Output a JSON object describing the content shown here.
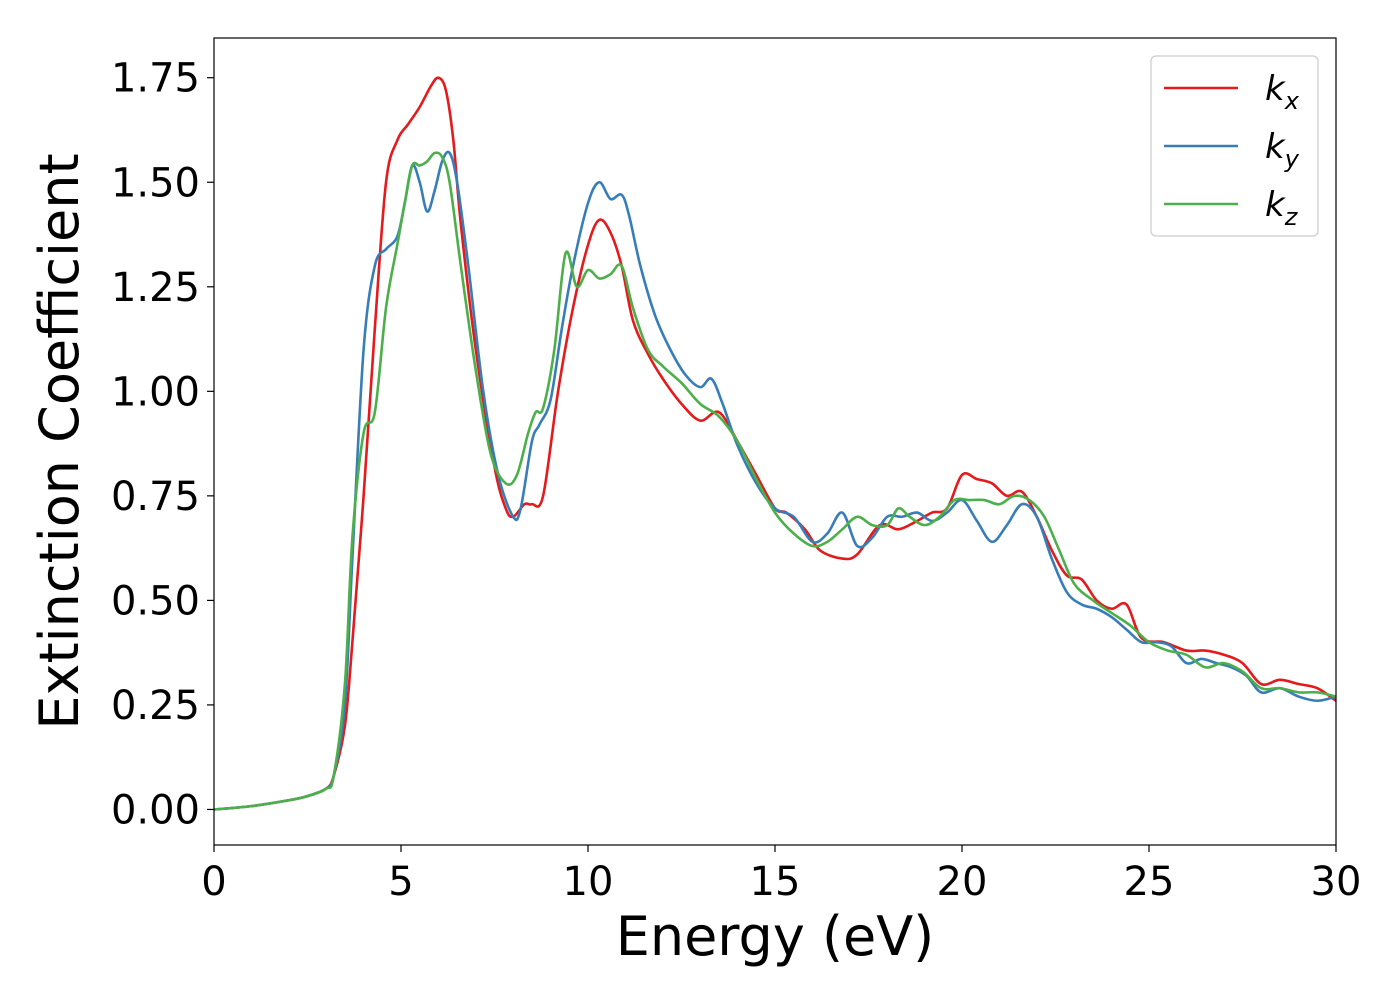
{
  "chart_data": {
    "type": "line",
    "title": "",
    "xlabel": "Energy (eV)",
    "ylabel": "Extinction Coefficient",
    "xlim": [
      0,
      30
    ],
    "ylim": [
      -0.085,
      1.845
    ],
    "xticks": [
      0,
      5,
      10,
      15,
      20,
      25,
      30
    ],
    "xtick_labels": [
      "0",
      "5",
      "10",
      "15",
      "20",
      "25",
      "30"
    ],
    "yticks": [
      0.0,
      0.25,
      0.5,
      0.75,
      1.0,
      1.25,
      1.5,
      1.75
    ],
    "ytick_labels": [
      "0.00",
      "0.25",
      "0.50",
      "0.75",
      "1.00",
      "1.25",
      "1.50",
      "1.75"
    ],
    "grid": false,
    "legend_position": "top-right",
    "series": [
      {
        "name": "kx",
        "base": "k",
        "sub": "x",
        "color": "#e41a1c",
        "x": [
          0,
          1,
          2,
          2.5,
          3,
          3.2,
          3.5,
          3.7,
          4,
          4.3,
          4.6,
          4.9,
          5.2,
          5.5,
          5.8,
          6.0,
          6.2,
          6.4,
          6.6,
          7.0,
          7.5,
          7.8,
          8.0,
          8.3,
          8.5,
          8.8,
          9.2,
          9.6,
          10.0,
          10.3,
          10.6,
          10.9,
          11.2,
          11.6,
          12.0,
          12.5,
          13.0,
          13.5,
          14.0,
          14.5,
          15.0,
          15.3,
          15.8,
          16.2,
          16.8,
          17.2,
          17.8,
          18.3,
          18.8,
          19.2,
          19.6,
          20.0,
          20.4,
          20.8,
          21.2,
          21.6,
          22.0,
          22.4,
          22.8,
          23.2,
          23.6,
          24.0,
          24.4,
          24.8,
          25.4,
          26.0,
          26.5,
          27.0,
          27.5,
          28.0,
          28.5,
          29.0,
          29.5,
          30.0
        ],
        "y": [
          0.0,
          0.008,
          0.022,
          0.032,
          0.05,
          0.08,
          0.2,
          0.4,
          0.75,
          1.15,
          1.5,
          1.6,
          1.64,
          1.68,
          1.73,
          1.75,
          1.72,
          1.6,
          1.4,
          1.1,
          0.82,
          0.72,
          0.7,
          0.73,
          0.73,
          0.75,
          1.0,
          1.2,
          1.35,
          1.41,
          1.38,
          1.3,
          1.17,
          1.09,
          1.03,
          0.97,
          0.93,
          0.95,
          0.88,
          0.8,
          0.72,
          0.71,
          0.67,
          0.62,
          0.6,
          0.61,
          0.68,
          0.67,
          0.69,
          0.71,
          0.72,
          0.8,
          0.79,
          0.78,
          0.75,
          0.76,
          0.7,
          0.62,
          0.56,
          0.55,
          0.5,
          0.48,
          0.49,
          0.41,
          0.4,
          0.38,
          0.38,
          0.37,
          0.35,
          0.3,
          0.31,
          0.3,
          0.29,
          0.26
        ]
      },
      {
        "name": "ky",
        "base": "k",
        "sub": "y",
        "color": "#377eb8",
        "x": [
          0,
          1,
          2,
          2.5,
          3,
          3.2,
          3.5,
          3.7,
          4,
          4.3,
          4.6,
          4.9,
          5.1,
          5.3,
          5.5,
          5.7,
          5.9,
          6.1,
          6.3,
          6.5,
          6.8,
          7.2,
          7.6,
          8.0,
          8.2,
          8.5,
          8.7,
          9.0,
          9.3,
          9.6,
          10.0,
          10.3,
          10.6,
          10.9,
          11.1,
          11.4,
          11.8,
          12.2,
          12.6,
          13.0,
          13.3,
          13.6,
          14.0,
          14.5,
          15.0,
          15.5,
          16.0,
          16.4,
          16.8,
          17.2,
          17.6,
          18.0,
          18.4,
          18.8,
          19.2,
          19.6,
          20.0,
          20.4,
          20.8,
          21.2,
          21.6,
          22.0,
          22.4,
          22.8,
          23.2,
          23.6,
          24.0,
          24.4,
          24.8,
          25.2,
          25.6,
          26.0,
          26.4,
          26.8,
          27.2,
          27.6,
          28.0,
          28.5,
          29.0,
          29.5,
          30.0
        ],
        "y": [
          0.0,
          0.008,
          0.022,
          0.032,
          0.05,
          0.08,
          0.25,
          0.6,
          1.1,
          1.3,
          1.34,
          1.37,
          1.45,
          1.54,
          1.5,
          1.43,
          1.48,
          1.55,
          1.57,
          1.5,
          1.3,
          1.0,
          0.8,
          0.7,
          0.72,
          0.88,
          0.92,
          0.98,
          1.15,
          1.3,
          1.45,
          1.5,
          1.46,
          1.47,
          1.42,
          1.3,
          1.18,
          1.1,
          1.04,
          1.01,
          1.03,
          0.97,
          0.87,
          0.78,
          0.72,
          0.7,
          0.64,
          0.66,
          0.71,
          0.63,
          0.65,
          0.7,
          0.7,
          0.71,
          0.69,
          0.71,
          0.74,
          0.69,
          0.64,
          0.68,
          0.73,
          0.7,
          0.6,
          0.52,
          0.49,
          0.48,
          0.46,
          0.43,
          0.4,
          0.4,
          0.39,
          0.35,
          0.36,
          0.35,
          0.34,
          0.32,
          0.28,
          0.29,
          0.27,
          0.26,
          0.27
        ]
      },
      {
        "name": "kz",
        "base": "k",
        "sub": "z",
        "color": "#4daf4a",
        "x": [
          0,
          1,
          2,
          2.5,
          3,
          3.2,
          3.5,
          3.7,
          4,
          4.3,
          4.6,
          4.9,
          5.1,
          5.3,
          5.5,
          5.7,
          5.9,
          6.1,
          6.3,
          6.6,
          7.0,
          7.4,
          7.8,
          8.1,
          8.4,
          8.6,
          8.8,
          9.1,
          9.4,
          9.7,
          10.0,
          10.3,
          10.6,
          10.9,
          11.2,
          11.6,
          12.0,
          12.5,
          13.0,
          13.5,
          14.0,
          14.5,
          15.0,
          15.5,
          16.0,
          16.4,
          16.8,
          17.2,
          17.6,
          18.0,
          18.3,
          18.6,
          19.0,
          19.4,
          19.8,
          20.2,
          20.6,
          21.0,
          21.4,
          21.8,
          22.2,
          22.6,
          23.0,
          23.5,
          24.0,
          24.5,
          25.0,
          25.5,
          26.0,
          26.5,
          27.0,
          27.5,
          28.0,
          28.5,
          29.0,
          29.5,
          30.0
        ],
        "y": [
          0.0,
          0.008,
          0.022,
          0.032,
          0.05,
          0.08,
          0.3,
          0.65,
          0.9,
          0.95,
          1.2,
          1.35,
          1.45,
          1.54,
          1.54,
          1.55,
          1.57,
          1.56,
          1.5,
          1.3,
          1.05,
          0.85,
          0.78,
          0.8,
          0.9,
          0.95,
          0.96,
          1.1,
          1.33,
          1.25,
          1.29,
          1.27,
          1.28,
          1.3,
          1.2,
          1.1,
          1.06,
          1.02,
          0.97,
          0.94,
          0.88,
          0.79,
          0.71,
          0.66,
          0.63,
          0.64,
          0.67,
          0.7,
          0.68,
          0.68,
          0.72,
          0.7,
          0.68,
          0.7,
          0.74,
          0.74,
          0.74,
          0.73,
          0.75,
          0.74,
          0.7,
          0.62,
          0.54,
          0.5,
          0.47,
          0.44,
          0.4,
          0.38,
          0.37,
          0.34,
          0.35,
          0.33,
          0.29,
          0.29,
          0.28,
          0.28,
          0.27
        ]
      }
    ]
  }
}
